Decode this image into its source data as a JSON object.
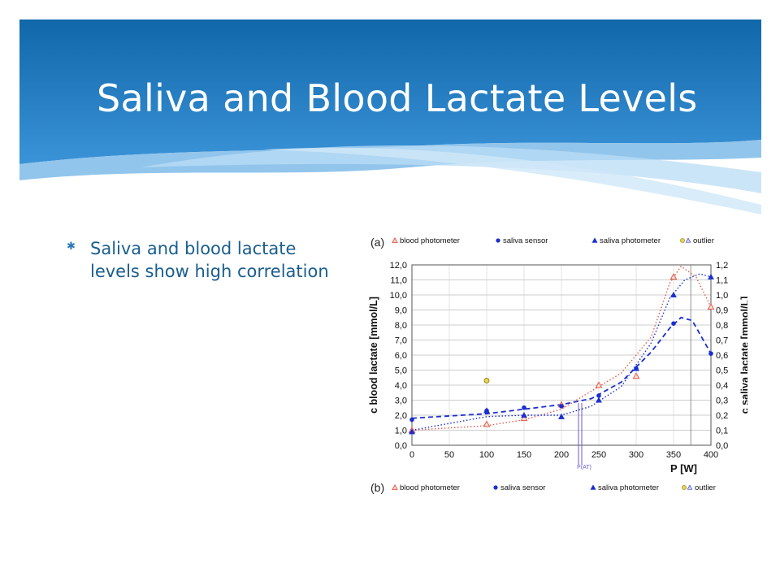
{
  "slide": {
    "title": "Saliva and Blood Lactate Levels",
    "bullets": [
      "Saliva and blood lactate levels show high correlation"
    ],
    "colors": {
      "header_dark": "#1067a9",
      "header_light": "#3b93d8",
      "title_text": "#ffffff",
      "bullet_text": "#1a5e8e",
      "bullet_mark": "#2a7ab8"
    }
  },
  "chart_data": {
    "type": "line",
    "panel_labels": [
      "(a)",
      "(b)"
    ],
    "legend_top": [
      "blood photometer",
      "saliva sensor",
      "saliva photometer",
      "outlier"
    ],
    "legend_bottom": [
      "blood photometer",
      "saliva sensor",
      "saliva photometer",
      "outlier"
    ],
    "xlabel": "P [W]",
    "ylabel": "c blood lactate [mmol/L]",
    "y2label": "c saliva lactate [mmol/L]",
    "x_ticks": [
      "0",
      "50",
      "100",
      "150",
      "200",
      "250",
      "300",
      "350",
      "400"
    ],
    "y_ticks": [
      "0,0",
      "1,0",
      "2,0",
      "3,0",
      "4,0",
      "5,0",
      "6,0",
      "7,0",
      "8,0",
      "9,0",
      "10,0",
      "11,0",
      "12,0"
    ],
    "y2_ticks": [
      "0,0",
      "0,1",
      "0,2",
      "0,3",
      "0,4",
      "0,5",
      "0,6",
      "0,7",
      "0,8",
      "0,9",
      "1,0",
      "1,1",
      "1,2"
    ],
    "xlim": [
      0,
      400
    ],
    "ylim": [
      0,
      12
    ],
    "y2lim": [
      0,
      1.2
    ],
    "marker_label": "P(AT)",
    "marker_x": 225,
    "grid": true,
    "series": [
      {
        "name": "blood photometer",
        "axis": "left",
        "color": "#e05a4a",
        "x": [
          0,
          100,
          150,
          200,
          250,
          300,
          350,
          400
        ],
        "y": [
          1.0,
          1.4,
          1.8,
          2.7,
          4.0,
          4.6,
          11.2,
          9.2
        ],
        "fit_x": [
          0,
          100,
          150,
          200,
          240,
          280,
          320,
          345,
          360,
          380,
          400
        ],
        "fit_y": [
          1.0,
          1.3,
          1.7,
          2.4,
          3.6,
          4.8,
          7.2,
          10.8,
          11.9,
          11.2,
          9.2
        ]
      },
      {
        "name": "saliva sensor",
        "axis": "right",
        "color": "#1a2fcf",
        "x": [
          0,
          100,
          150,
          200,
          250,
          300,
          350,
          400
        ],
        "y": [
          0.17,
          0.23,
          0.25,
          0.26,
          0.33,
          0.51,
          0.81,
          0.61
        ],
        "fit_x": [
          0,
          100,
          150,
          200,
          240,
          280,
          320,
          345,
          360,
          375,
          400
        ],
        "fit_y": [
          0.18,
          0.21,
          0.24,
          0.27,
          0.31,
          0.42,
          0.62,
          0.78,
          0.85,
          0.83,
          0.61
        ]
      },
      {
        "name": "saliva photometer",
        "axis": "right",
        "color": "#1a2fcf",
        "x": [
          0,
          100,
          150,
          200,
          250,
          300,
          350,
          400
        ],
        "y": [
          0.09,
          0.23,
          0.2,
          0.19,
          0.3,
          0.51,
          1.0,
          1.12
        ],
        "fit_x": [
          0,
          100,
          150,
          200,
          240,
          280,
          320,
          345,
          365,
          385,
          400
        ],
        "fit_y": [
          0.1,
          0.19,
          0.2,
          0.2,
          0.26,
          0.39,
          0.68,
          0.98,
          1.1,
          1.14,
          1.12
        ]
      },
      {
        "name": "outlier",
        "axis": "left",
        "color": "#e8d34a",
        "x": [
          100
        ],
        "y": [
          4.3
        ]
      }
    ]
  }
}
